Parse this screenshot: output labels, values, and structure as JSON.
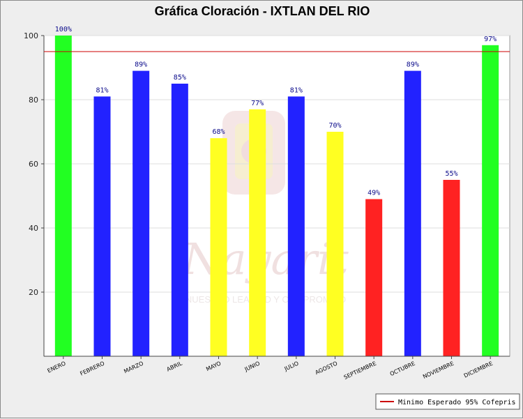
{
  "chart_data": {
    "type": "bar",
    "title": "Gráfica Cloración - IXTLAN DEL RIO",
    "xlabel": "",
    "ylabel": "",
    "ylim": [
      0,
      100
    ],
    "yticks": [
      20,
      40,
      60,
      80,
      100
    ],
    "grid": true,
    "categories": [
      "ENERO",
      "FEBRERO",
      "MARZO",
      "ABRIL",
      "MAYO",
      "JUNIO",
      "JULIO",
      "AGOSTO",
      "SEPTIEMBRE",
      "OCTUBRE",
      "NOVIEMBRE",
      "DICIEMBRE"
    ],
    "values": [
      100,
      81,
      89,
      85,
      68,
      77,
      81,
      70,
      49,
      89,
      55,
      97
    ],
    "data_labels": [
      "100%",
      "81%",
      "89%",
      "85%",
      "68%",
      "77%",
      "81%",
      "70%",
      "49%",
      "89%",
      "55%",
      "97%"
    ],
    "bar_colors": [
      "#22ff22",
      "#2222ff",
      "#2222ff",
      "#2222ff",
      "#ffff22",
      "#ffff22",
      "#2222ff",
      "#ffff22",
      "#ff2222",
      "#2222ff",
      "#ff2222",
      "#22ff22"
    ],
    "reference_line": {
      "value": 95,
      "label": "Minimo Esperado 95% Cofepris",
      "color": "#cc0000"
    },
    "legend_position": "bottom-right",
    "watermark": {
      "text": "Nayarit",
      "subtext": "NUESTRO LEALTAD Y COMPROMISO"
    }
  }
}
